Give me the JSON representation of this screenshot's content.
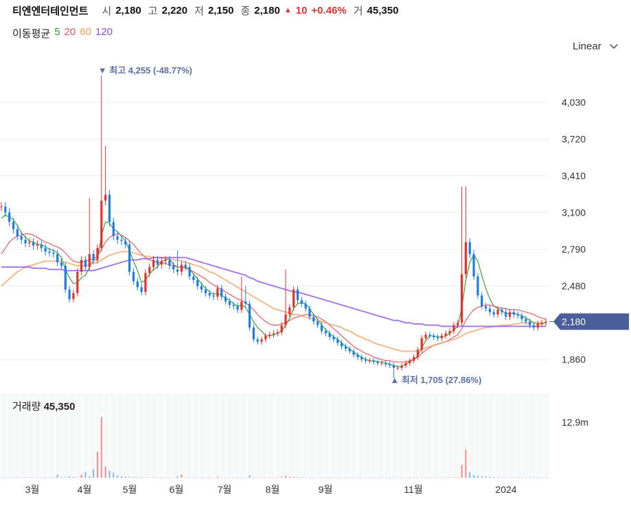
{
  "header": {
    "name": "티엔엔터테인먼트",
    "open_label": "시",
    "open": "2,180",
    "high_label": "고",
    "high": "2,220",
    "low_label": "저",
    "low": "2,150",
    "close_label": "종",
    "close": "2,180",
    "change_arrow": "▲",
    "change": "10",
    "change_pct": "+0.46%",
    "vol_label": "거",
    "vol": "45,350"
  },
  "moving_average": {
    "label": "이동평균",
    "periods": [
      {
        "text": "5",
        "color": "#2ca02c"
      },
      {
        "text": "20",
        "color": "#e8535a"
      },
      {
        "text": "60",
        "color": "#f29a55"
      },
      {
        "text": "120",
        "color": "#8b4fdb"
      }
    ]
  },
  "scale_toggle": {
    "label": "Linear",
    "icon": "chevron-down-icon"
  },
  "colors": {
    "up": "#e0322f",
    "down": "#1e7be0",
    "price_tag": "#4a5e9a",
    "annotation": "#5b6fa8"
  },
  "annotations": {
    "high": {
      "label": "▼ 최고 4,255 (-48.77%)",
      "value": 4255
    },
    "low": {
      "label": "▲ 최저 1,705 (27.86%)",
      "value": 1705
    }
  },
  "volume_label": {
    "label": "거래량",
    "value": "45,350"
  },
  "chart_data": {
    "type": "candlestick",
    "price_axis": {
      "ticks": [
        "4,030",
        "3,720",
        "3,410",
        "3,100",
        "2,790",
        "2,480",
        "1,860"
      ],
      "range": [
        1650,
        4400
      ]
    },
    "current_price": "2,180",
    "volume_axis": {
      "ticks": [
        "12.9m"
      ],
      "range": [
        0,
        14000000
      ]
    },
    "x_ticks": [
      "3월",
      "4월",
      "5월",
      "6월",
      "7월",
      "8월",
      "9월",
      "11월",
      "2024"
    ],
    "close_series": [
      3150,
      3100,
      3020,
      2960,
      2900,
      2870,
      2840,
      2850,
      2820,
      2830,
      2800,
      2770,
      2760,
      2750,
      2680,
      2650,
      2450,
      2370,
      2420,
      2600,
      2700,
      2640,
      2750,
      2700,
      2800,
      3200,
      3250,
      3020,
      2900,
      2870,
      2860,
      2830,
      2600,
      2520,
      2470,
      2430,
      2590,
      2640,
      2700,
      2660,
      2690,
      2700,
      2650,
      2620,
      2600,
      2660,
      2640,
      2560,
      2530,
      2480,
      2450,
      2420,
      2400,
      2390,
      2460,
      2390,
      2350,
      2320,
      2310,
      2280,
      2350,
      2330,
      2130,
      2030,
      2010,
      2030,
      2060,
      2070,
      2080,
      2090,
      2150,
      2240,
      2300,
      2450,
      2360,
      2330,
      2290,
      2220,
      2180,
      2150,
      2100,
      2080,
      2050,
      2030,
      2000,
      1970,
      1950,
      1930,
      1900,
      1880,
      1860,
      1850,
      1850,
      1840,
      1830,
      1830,
      1820,
      1810,
      1790,
      1790,
      1810,
      1830,
      1850,
      1880,
      1940,
      2040,
      2070,
      2060,
      2050,
      2040,
      2060,
      2080,
      2100,
      2150,
      2170,
      2580,
      2850,
      2750,
      2560,
      2400,
      2310,
      2290,
      2260,
      2240,
      2280,
      2260,
      2220,
      2260,
      2240,
      2230,
      2200,
      2180,
      2150,
      2130,
      2160,
      2170,
      2180
    ],
    "ma_series": [
      {
        "name": "5",
        "values": [
          3050,
          3080,
          3060,
          3040,
          2990,
          2930,
          2890,
          2860,
          2850,
          2830,
          2830,
          2810,
          2790,
          2780,
          2760,
          2720,
          2620,
          2550,
          2500,
          2510,
          2550,
          2570,
          2640,
          2700,
          2700,
          2910,
          3020,
          3010,
          2960,
          2940,
          2900,
          2860,
          2780,
          2690,
          2610,
          2510,
          2530,
          2580,
          2620,
          2640,
          2690,
          2700,
          2710,
          2660,
          2640,
          2640,
          2640,
          2620,
          2580,
          2540,
          2500,
          2460,
          2430,
          2410,
          2420,
          2400,
          2380,
          2360,
          2330,
          2310,
          2320,
          2300,
          2240,
          2180,
          2130,
          2100,
          2060,
          2060,
          2070,
          2080,
          2100,
          2150,
          2210,
          2290,
          2330,
          2340,
          2330,
          2290,
          2240,
          2200,
          2150,
          2110,
          2080,
          2050,
          2030,
          2000,
          1970,
          1950,
          1920,
          1900,
          1880,
          1860,
          1850,
          1850,
          1840,
          1840,
          1830,
          1820,
          1810,
          1800,
          1800,
          1820,
          1840,
          1860,
          1890,
          1960,
          2020,
          2060,
          2060,
          2050,
          2050,
          2060,
          2080,
          2110,
          2140,
          2300,
          2530,
          2680,
          2740,
          2690,
          2570,
          2460,
          2370,
          2310,
          2290,
          2270,
          2250,
          2250,
          2250,
          2240,
          2230,
          2210,
          2190,
          2170,
          2160,
          2160,
          2170
        ]
      },
      {
        "name": "20",
        "values": [
          2750,
          2800,
          2850,
          2880,
          2900,
          2910,
          2920,
          2920,
          2910,
          2890,
          2870,
          2850,
          2840,
          2820,
          2810,
          2790,
          2760,
          2720,
          2690,
          2680,
          2680,
          2690,
          2700,
          2710,
          2730,
          2790,
          2850,
          2890,
          2910,
          2920,
          2910,
          2890,
          2860,
          2830,
          2790,
          2750,
          2720,
          2700,
          2690,
          2680,
          2680,
          2670,
          2660,
          2650,
          2640,
          2640,
          2630,
          2620,
          2600,
          2580,
          2560,
          2540,
          2510,
          2490,
          2470,
          2450,
          2430,
          2410,
          2390,
          2370,
          2360,
          2340,
          2310,
          2280,
          2240,
          2210,
          2180,
          2160,
          2150,
          2150,
          2160,
          2170,
          2190,
          2210,
          2220,
          2230,
          2240,
          2240,
          2230,
          2220,
          2200,
          2180,
          2150,
          2120,
          2090,
          2060,
          2030,
          2000,
          1970,
          1950,
          1930,
          1910,
          1900,
          1880,
          1870,
          1860,
          1850,
          1850,
          1840,
          1840,
          1840,
          1840,
          1850,
          1860,
          1880,
          1910,
          1940,
          1960,
          1980,
          1990,
          2000,
          2010,
          2030,
          2050,
          2070,
          2120,
          2190,
          2240,
          2280,
          2300,
          2310,
          2320,
          2320,
          2310,
          2300,
          2290,
          2290,
          2280,
          2280,
          2280,
          2270,
          2260,
          2250,
          2240,
          2220,
          2210,
          2200
        ]
      },
      {
        "name": "60",
        "values": [
          2480,
          2510,
          2540,
          2570,
          2600,
          2620,
          2640,
          2650,
          2660,
          2670,
          2680,
          2690,
          2690,
          2690,
          2690,
          2690,
          2680,
          2670,
          2660,
          2650,
          2650,
          2650,
          2660,
          2670,
          2680,
          2700,
          2720,
          2740,
          2750,
          2760,
          2770,
          2770,
          2770,
          2760,
          2750,
          2740,
          2730,
          2730,
          2720,
          2720,
          2720,
          2710,
          2710,
          2700,
          2700,
          2690,
          2680,
          2670,
          2660,
          2650,
          2640,
          2620,
          2600,
          2590,
          2570,
          2550,
          2530,
          2510,
          2490,
          2470,
          2450,
          2430,
          2410,
          2390,
          2370,
          2350,
          2330,
          2310,
          2290,
          2280,
          2270,
          2260,
          2250,
          2240,
          2240,
          2230,
          2220,
          2210,
          2200,
          2190,
          2180,
          2170,
          2160,
          2150,
          2140,
          2130,
          2110,
          2100,
          2080,
          2060,
          2050,
          2030,
          2020,
          2000,
          1990,
          1980,
          1970,
          1960,
          1950,
          1940,
          1930,
          1930,
          1930,
          1930,
          1940,
          1950,
          1960,
          1970,
          1980,
          1990,
          2000,
          2010,
          2020,
          2030,
          2040,
          2060,
          2080,
          2090,
          2100,
          2110,
          2120,
          2130,
          2130,
          2140,
          2140,
          2150,
          2150,
          2150,
          2160,
          2160,
          2170,
          2170,
          2170,
          2170,
          2170,
          2170,
          2170
        ]
      },
      {
        "name": "120",
        "values": [
          2640,
          2640,
          2640,
          2640,
          2640,
          2640,
          2640,
          2640,
          2630,
          2630,
          2630,
          2630,
          2620,
          2620,
          2620,
          2620,
          2610,
          2610,
          2610,
          2610,
          2610,
          2610,
          2610,
          2610,
          2620,
          2630,
          2640,
          2650,
          2660,
          2670,
          2680,
          2690,
          2700,
          2700,
          2700,
          2710,
          2710,
          2710,
          2720,
          2720,
          2720,
          2720,
          2720,
          2720,
          2720,
          2720,
          2720,
          2710,
          2700,
          2690,
          2680,
          2670,
          2660,
          2650,
          2640,
          2630,
          2620,
          2610,
          2600,
          2590,
          2580,
          2570,
          2550,
          2540,
          2520,
          2510,
          2500,
          2490,
          2480,
          2470,
          2460,
          2450,
          2440,
          2430,
          2430,
          2420,
          2410,
          2400,
          2390,
          2380,
          2370,
          2360,
          2350,
          2340,
          2330,
          2320,
          2310,
          2300,
          2290,
          2280,
          2270,
          2260,
          2250,
          2240,
          2230,
          2220,
          2210,
          2200,
          2190,
          2190,
          2180,
          2170,
          2170,
          2160,
          2160,
          2160,
          2150,
          2150,
          2150,
          2150,
          2140,
          2140,
          2140,
          2140,
          2140,
          2140,
          2140,
          2140,
          2140,
          2140,
          2140,
          2140,
          2140,
          2140,
          2140,
          2140,
          2140,
          2140,
          2140,
          2140,
          2140,
          2140,
          2140,
          2140,
          2140,
          2140,
          2140
        ]
      }
    ],
    "volume_series": [
      40000,
      50000,
      60000,
      90000,
      110000,
      80000,
      60000,
      70000,
      50000,
      60000,
      50000,
      40000,
      60000,
      90000,
      700000,
      180000,
      120000,
      300000,
      150000,
      80000,
      600000,
      1200000,
      300000,
      1800000,
      5500000,
      12900000,
      2400000,
      1500000,
      1100000,
      500000,
      300000,
      250000,
      200000,
      150000,
      120000,
      100000,
      80000,
      60000,
      50000,
      40000,
      40000,
      40000,
      30000,
      30000,
      300000,
      700000,
      80000,
      60000,
      60000,
      50000,
      40000,
      40000,
      30000,
      30000,
      200000,
      40000,
      30000,
      30000,
      40000,
      40000,
      40000,
      30000,
      500000,
      90000,
      60000,
      60000,
      60000,
      40000,
      30000,
      30000,
      200000,
      400000,
      200000,
      150000,
      100000,
      80000,
      60000,
      50000,
      40000,
      40000,
      40000,
      30000,
      30000,
      30000,
      30000,
      30000,
      30000,
      30000,
      30000,
      30000,
      30000,
      30000,
      30000,
      30000,
      30000,
      30000,
      30000,
      30000,
      30000,
      30000,
      30000,
      30000,
      40000,
      40000,
      50000,
      60000,
      50000,
      40000,
      40000,
      40000,
      40000,
      50000,
      60000,
      90000,
      120000,
      2800000,
      6000000,
      1200000,
      600000,
      400000,
      300000,
      250000,
      200000,
      150000,
      100000,
      80000,
      60000,
      60000,
      50000,
      40000,
      40000,
      40000,
      40000,
      50000,
      50000,
      45350,
      45350
    ]
  }
}
